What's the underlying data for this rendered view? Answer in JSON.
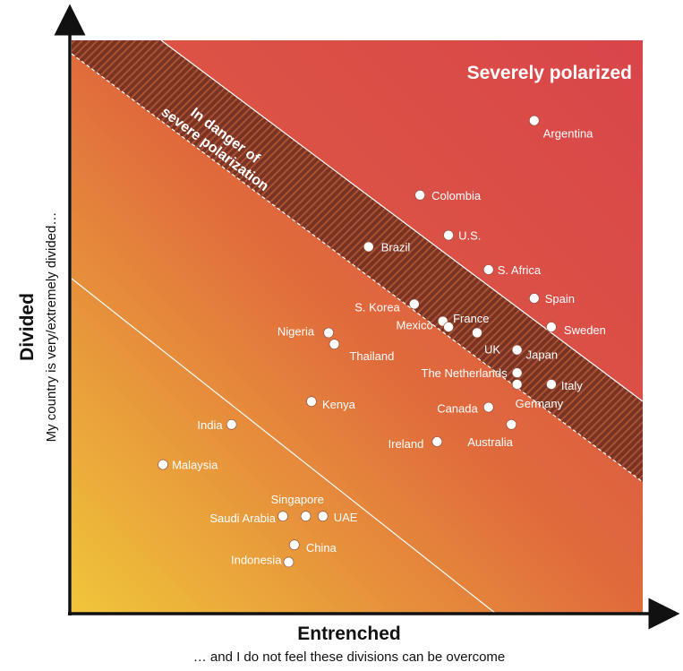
{
  "chart_data": {
    "type": "scatter",
    "title": "",
    "xlabel": "Entrenched",
    "xsublabel": "… and I do not feel these divisions can be overcome",
    "ylabel": "Divided",
    "ysublabel": "My country is very/extremely divided…",
    "zones": {
      "severe": "Severely polarized",
      "danger": [
        "In danger of",
        "severe polarization"
      ]
    },
    "grid": false,
    "colors": {
      "severe": "#d9464a",
      "mid": "#e06a3c",
      "low": "#f0c63a",
      "band_stripe": "#7a3322",
      "point": "#ffffff",
      "axis": "#111111"
    },
    "points": [
      {
        "name": "Argentina",
        "x": 81,
        "y": 86
      },
      {
        "name": "Colombia",
        "x": 61,
        "y": 73
      },
      {
        "name": "U.S.",
        "x": 66,
        "y": 66
      },
      {
        "name": "Brazil",
        "x": 52,
        "y": 64
      },
      {
        "name": "S. Africa",
        "x": 73,
        "y": 60
      },
      {
        "name": "Spain",
        "x": 81,
        "y": 55
      },
      {
        "name": "S. Korea",
        "x": 60,
        "y": 54
      },
      {
        "name": "Mexico",
        "x": 65,
        "y": 51
      },
      {
        "name": "France",
        "x": 66,
        "y": 50
      },
      {
        "name": "Sweden",
        "x": 84,
        "y": 50
      },
      {
        "name": "UK",
        "x": 71,
        "y": 49
      },
      {
        "name": "Nigeria",
        "x": 45,
        "y": 49
      },
      {
        "name": "Thailand",
        "x": 46,
        "y": 47
      },
      {
        "name": "Japan",
        "x": 78,
        "y": 46
      },
      {
        "name": "The Netherlands",
        "x": 78,
        "y": 42
      },
      {
        "name": "Italy",
        "x": 84,
        "y": 40
      },
      {
        "name": "Germany",
        "x": 78,
        "y": 40
      },
      {
        "name": "Kenya",
        "x": 42,
        "y": 37
      },
      {
        "name": "Canada",
        "x": 73,
        "y": 36
      },
      {
        "name": "Australia",
        "x": 77,
        "y": 33
      },
      {
        "name": "India",
        "x": 28,
        "y": 33
      },
      {
        "name": "Ireland",
        "x": 64,
        "y": 30
      },
      {
        "name": "Malaysia",
        "x": 16,
        "y": 26
      },
      {
        "name": "Singapore",
        "x": 41,
        "y": 17
      },
      {
        "name": "UAE",
        "x": 44,
        "y": 17
      },
      {
        "name": "Saudi Arabia",
        "x": 37,
        "y": 17
      },
      {
        "name": "China",
        "x": 39,
        "y": 12
      },
      {
        "name": "Indonesia",
        "x": 38,
        "y": 9
      }
    ]
  }
}
